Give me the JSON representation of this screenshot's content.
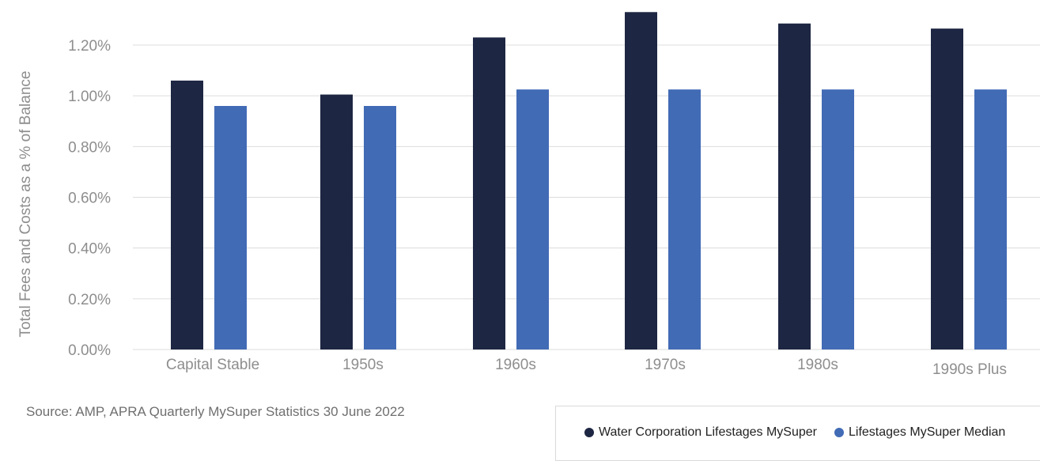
{
  "chart_data": {
    "type": "bar",
    "ylabel": "Total Fees and Costs as a % of Balance",
    "ylim": [
      0,
      1.3
    ],
    "yticks": [
      "0.00%",
      "0.20%",
      "0.40%",
      "0.60%",
      "0.80%",
      "1.00%",
      "1.20%"
    ],
    "ytick_values": [
      0,
      0.2,
      0.4,
      0.6,
      0.8,
      1.0,
      1.2
    ],
    "categories": [
      "Capital Stable",
      "1950s",
      "1960s",
      "1970s",
      "1980s",
      "1990s Plus"
    ],
    "series": [
      {
        "name": "Water Corporation Lifestages MySuper",
        "color": "#1d2642",
        "values": [
          1.06,
          1.005,
          1.23,
          1.33,
          1.285,
          1.265
        ]
      },
      {
        "name": "Lifestages MySuper Median",
        "color": "#426bb5",
        "values": [
          0.96,
          0.96,
          1.025,
          1.025,
          1.025,
          1.025
        ]
      }
    ],
    "grid": true,
    "legend_position": "bottom-right"
  },
  "source_text": "Source: AMP, APRA Quarterly MySuper Statistics 30 June 2022"
}
